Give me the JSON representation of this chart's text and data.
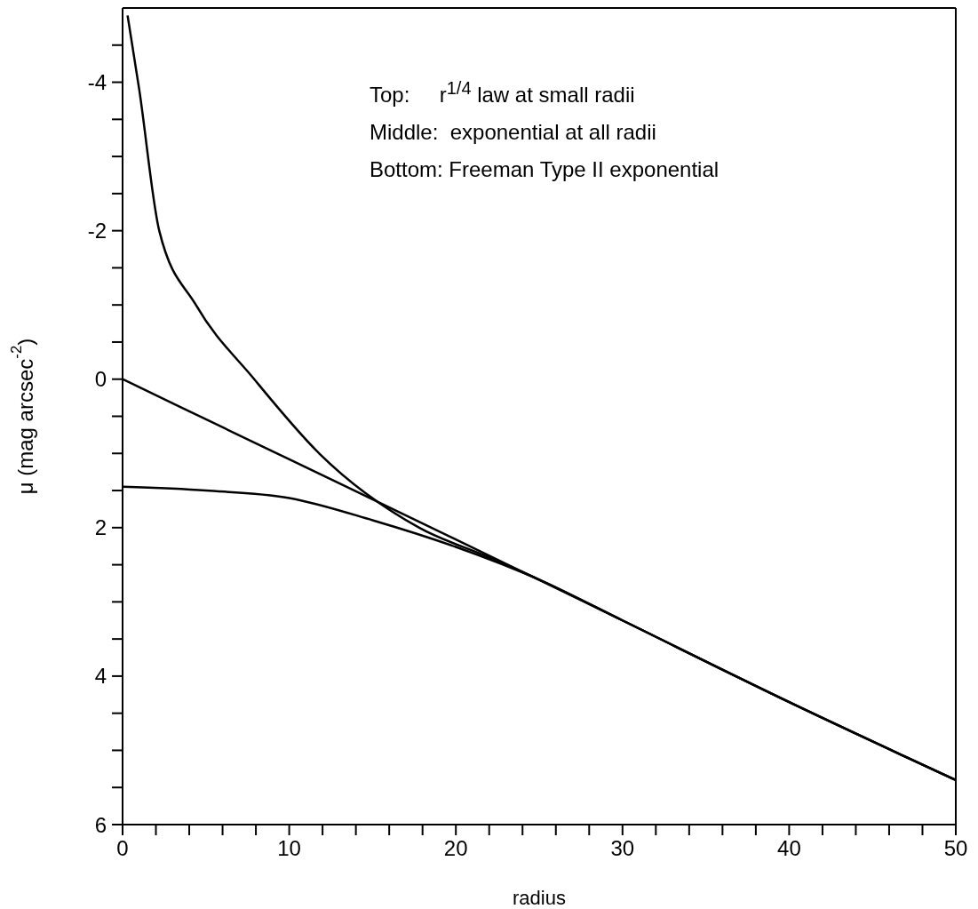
{
  "chart_data": {
    "type": "line",
    "xlabel": "radius",
    "ylabel": "μ (mag arcsec$^{-2}$)",
    "annotations": [
      "Top:     r$^{1/4}$ law at small radii",
      "Middle:  exponential at all radii",
      "Bottom: Freeman Type II exponential"
    ],
    "xlim": [
      0,
      50
    ],
    "ylim": [
      6,
      -5
    ],
    "xticks": [
      0,
      {
        "value": 2,
        "label": null
      },
      {
        "value": 4,
        "label": null
      },
      {
        "value": 6,
        "label": null
      },
      {
        "value": 8,
        "label": null
      },
      10,
      {
        "value": 12,
        "label": null
      },
      {
        "value": 14,
        "label": null
      },
      {
        "value": 16,
        "label": null
      },
      {
        "value": 18,
        "label": null
      },
      20,
      {
        "value": 22,
        "label": null
      },
      {
        "value": 24,
        "label": null
      },
      {
        "value": 26,
        "label": null
      },
      {
        "value": 28,
        "label": null
      },
      30,
      {
        "value": 32,
        "label": null
      },
      {
        "value": 34,
        "label": null
      },
      {
        "value": 36,
        "label": null
      },
      {
        "value": 38,
        "label": null
      },
      40,
      {
        "value": 42,
        "label": null
      },
      {
        "value": 44,
        "label": null
      },
      {
        "value": 46,
        "label": null
      },
      {
        "value": 48,
        "label": null
      },
      50
    ],
    "yticks": [
      {
        "value": -4.5,
        "label": null
      },
      -4,
      {
        "value": -3.5,
        "label": null
      },
      {
        "value": -3,
        "label": null
      },
      {
        "value": -2.5,
        "label": null
      },
      -2,
      {
        "value": -1.5,
        "label": null
      },
      {
        "value": -1,
        "label": null
      },
      {
        "value": -0.5,
        "label": null
      },
      0,
      {
        "value": 0.5,
        "label": null
      },
      {
        "value": 1,
        "label": null
      },
      {
        "value": 1.5,
        "label": null
      },
      2,
      {
        "value": 2.5,
        "label": null
      },
      {
        "value": 3,
        "label": null
      },
      {
        "value": 3.5,
        "label": null
      },
      4,
      {
        "value": 4.5,
        "label": null
      },
      {
        "value": 5,
        "label": null
      },
      {
        "value": 5.5,
        "label": null
      },
      6
    ],
    "series": [
      {
        "color": "#000000",
        "x": [
          0.3,
          1,
          2.2,
          4.4,
          7.9,
          11.8,
          17.8,
          22,
          25,
          30,
          40,
          50
        ],
        "values": [
          -4.9,
          -3.9,
          -2,
          -1,
          0,
          1,
          2,
          2.4,
          2.7,
          3.25,
          4.35,
          5.4
        ]
      },
      {
        "color": "#000000",
        "x": [
          0,
          10,
          20,
          30,
          40,
          50
        ],
        "values": [
          0,
          1.08,
          2.16,
          3.25,
          4.35,
          5.4
        ]
      },
      {
        "color": "#000000",
        "x": [
          0,
          5,
          10,
          15,
          20,
          25,
          30,
          40,
          50
        ],
        "values": [
          1.45,
          1.5,
          1.6,
          1.9,
          2.26,
          2.7,
          3.25,
          4.35,
          5.4
        ]
      }
    ]
  }
}
